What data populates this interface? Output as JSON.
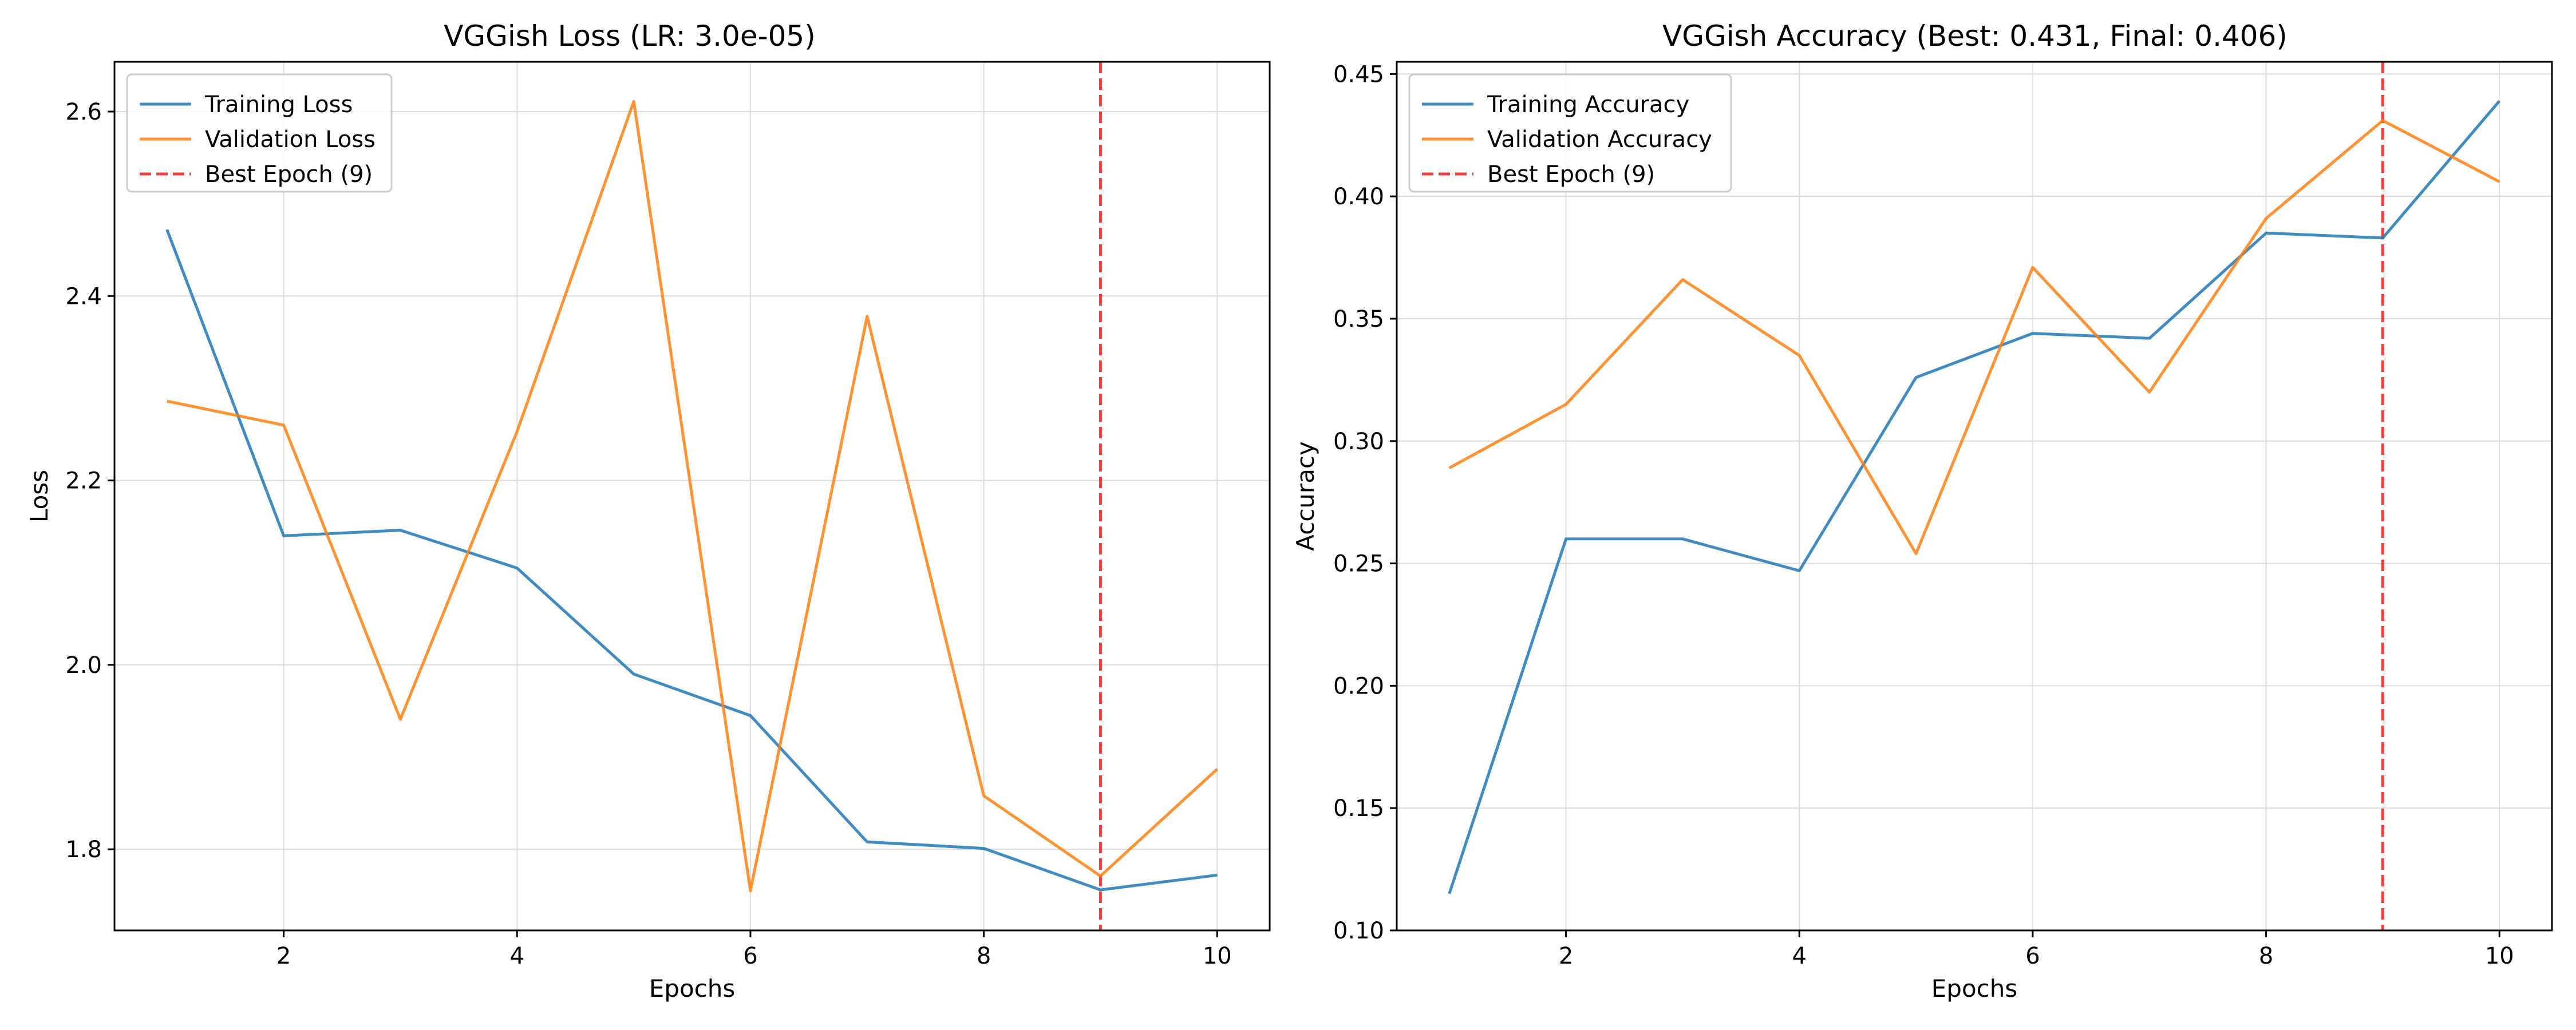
{
  "chart_data": [
    {
      "type": "line",
      "title": "VGGish Loss (LR: 3.0e-05)",
      "xlabel": "Epochs",
      "ylabel": "Loss",
      "xlim": [
        0.55,
        10.45
      ],
      "ylim": [
        1.712,
        2.654
      ],
      "xticks": [
        2,
        4,
        6,
        8,
        10
      ],
      "yticks": [
        1.8,
        2.0,
        2.2,
        2.4,
        2.6
      ],
      "ytick_labels": [
        "1.8",
        "2.0",
        "2.2",
        "2.4",
        "2.6"
      ],
      "grid": true,
      "legend_position": "upper-left",
      "x": [
        1,
        2,
        3,
        4,
        5,
        6,
        7,
        8,
        9,
        10
      ],
      "series": [
        {
          "name": "Training Loss",
          "color": "#1f77b4",
          "values": [
            2.472,
            2.14,
            2.146,
            2.105,
            1.99,
            1.945,
            1.808,
            1.801,
            1.756,
            1.772
          ]
        },
        {
          "name": "Validation Loss",
          "color": "#ff7f0e",
          "values": [
            2.286,
            2.26,
            1.941,
            2.253,
            2.611,
            1.755,
            2.378,
            1.858,
            1.771,
            1.887
          ]
        }
      ],
      "vline": {
        "name": "Best Epoch (9)",
        "x": 9,
        "color": "#e8231f"
      }
    },
    {
      "type": "line",
      "title": "VGGish Accuracy (Best: 0.431, Final: 0.406)",
      "xlabel": "Epochs",
      "ylabel": "Accuracy",
      "xlim": [
        0.55,
        10.45
      ],
      "ylim": [
        0.1,
        0.455
      ],
      "xticks": [
        2,
        4,
        6,
        8,
        10
      ],
      "yticks": [
        0.1,
        0.15,
        0.2,
        0.25,
        0.3,
        0.35,
        0.4,
        0.45
      ],
      "ytick_labels": [
        "0.10",
        "0.15",
        "0.20",
        "0.25",
        "0.30",
        "0.35",
        "0.40",
        "0.45"
      ],
      "grid": true,
      "legend_position": "upper-left",
      "x": [
        1,
        2,
        3,
        4,
        5,
        6,
        7,
        8,
        9,
        10
      ],
      "series": [
        {
          "name": "Training Accuracy",
          "color": "#1f77b4",
          "values": [
            0.115,
            0.26,
            0.26,
            0.247,
            0.326,
            0.344,
            0.342,
            0.385,
            0.383,
            0.439
          ]
        },
        {
          "name": "Validation Accuracy",
          "color": "#ff7f0e",
          "values": [
            0.289,
            0.315,
            0.366,
            0.335,
            0.254,
            0.371,
            0.32,
            0.391,
            0.431,
            0.406
          ]
        }
      ],
      "vline": {
        "name": "Best Epoch (9)",
        "x": 9,
        "color": "#e8231f"
      }
    }
  ]
}
